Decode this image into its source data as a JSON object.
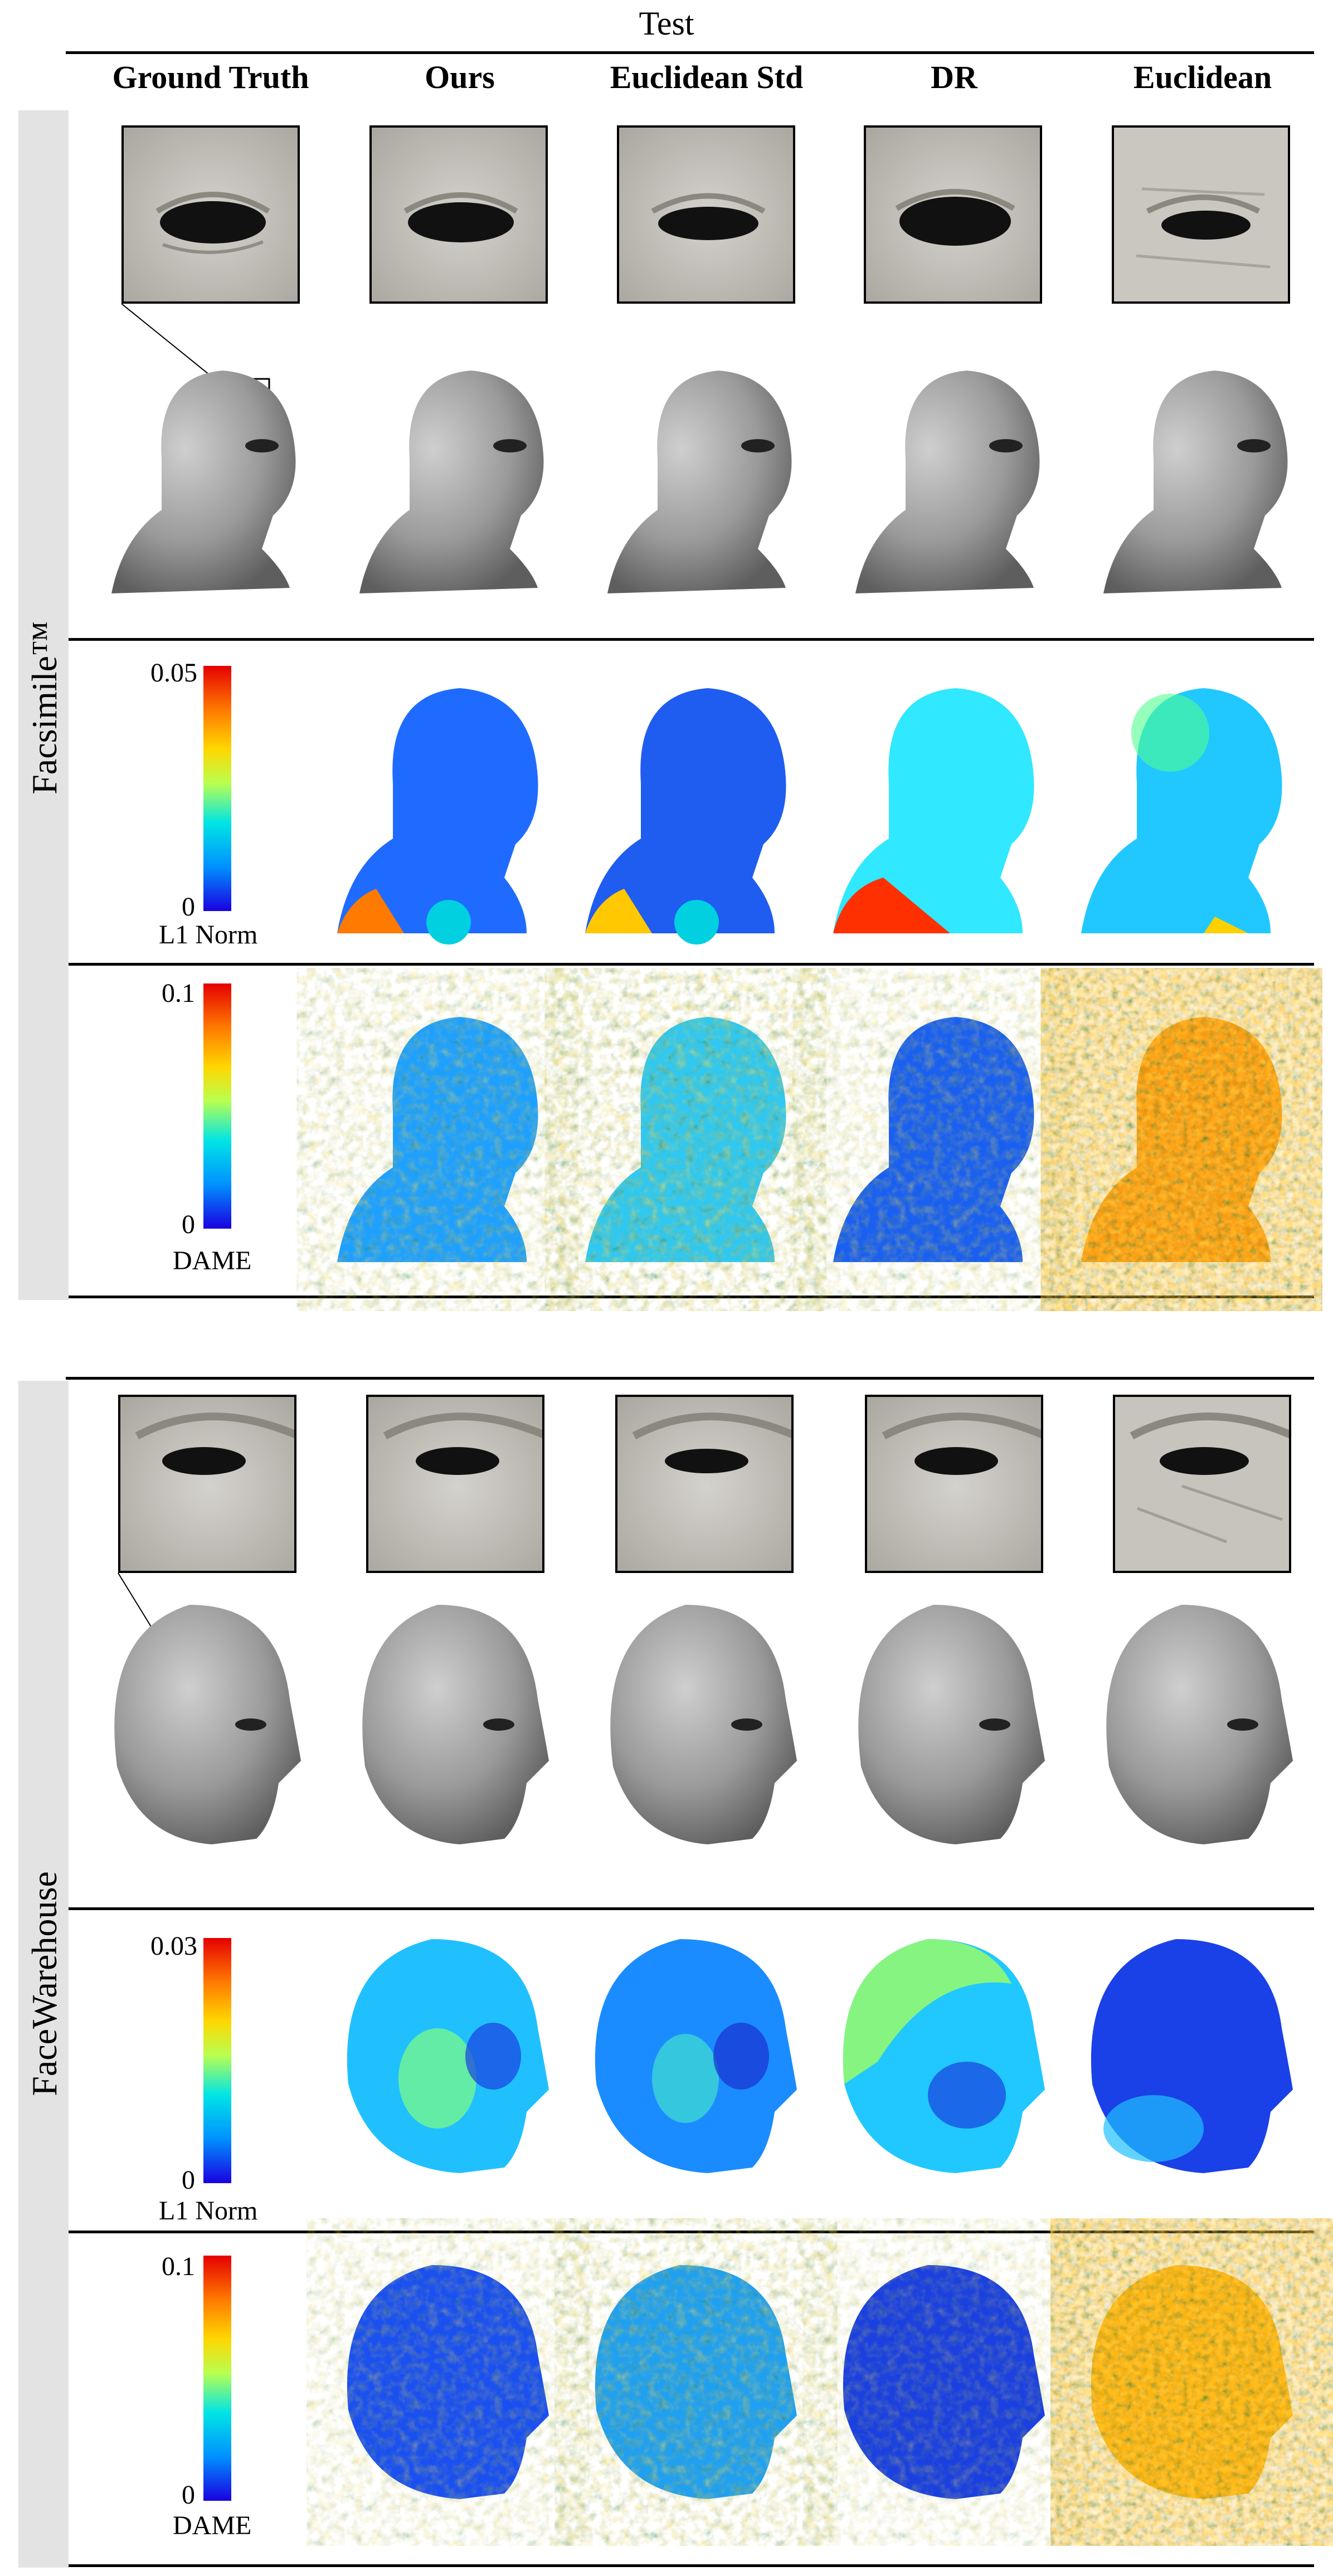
{
  "header": {
    "title": "Test"
  },
  "columns": [
    "Ground Truth",
    "Ours",
    "Euclidean Std",
    "DR",
    "Euclidean"
  ],
  "datasets": [
    {
      "name": "Facsimile™",
      "l1_max": "0.05",
      "l1_min": "0",
      "l1_label": "L1 Norm",
      "dame_max": "0.1",
      "dame_min": "0",
      "dame_label": "DAME"
    },
    {
      "name": "FaceWarehouse",
      "l1_max": "0.03",
      "l1_min": "0",
      "l1_label": "L1 Norm",
      "dame_max": "0.1",
      "dame_min": "0",
      "dame_label": "DAME"
    }
  ]
}
